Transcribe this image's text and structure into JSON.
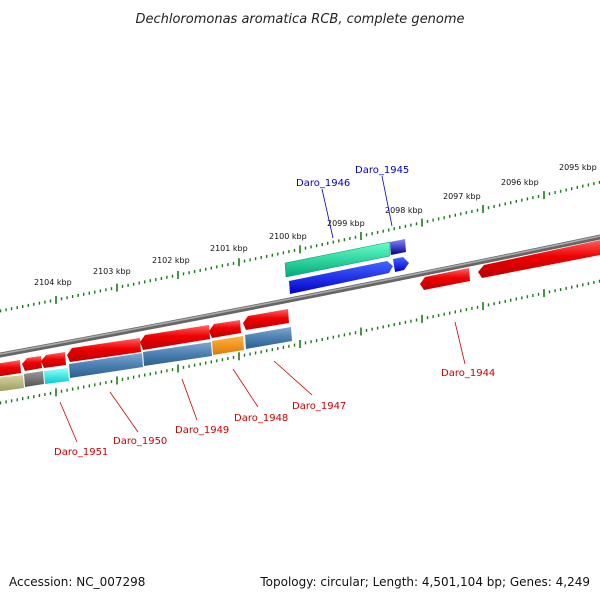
{
  "title": "Dechloromonas aromatica RCB, complete genome",
  "footer": {
    "accession": "Accession: NC_007298",
    "topology": "Topology: circular; Length: 4,501,104 bp; Genes: 4,249"
  },
  "colors": {
    "backbone": "#888888",
    "tick": "#1a7a1a",
    "forward_gene": "#ee0000",
    "reverse_label": "#cc0000",
    "forward_label": "#0000cc"
  },
  "ticks": {
    "outer": [
      {
        "label": "2100 kbp",
        "kbp": 2100
      },
      {
        "label": "2099 kbp",
        "kbp": 2099
      },
      {
        "label": "2098 kbp",
        "kbp": 2098
      },
      {
        "label": "2097 kbp",
        "kbp": 2097
      },
      {
        "label": "2096 kbp",
        "kbp": 2096
      },
      {
        "label": "2095 kbp",
        "kbp": 2095
      },
      {
        "label": "2101 kbp",
        "kbp": 2101
      },
      {
        "label": "2102 kbp",
        "kbp": 2102
      },
      {
        "label": "2103 kbp",
        "kbp": 2103
      },
      {
        "label": "2104 kbp",
        "kbp": 2104
      }
    ]
  },
  "genes": {
    "labels": [
      {
        "name": "Daro_1946",
        "strand": "plus"
      },
      {
        "name": "Daro_1945",
        "strand": "plus"
      },
      {
        "name": "Daro_1944",
        "strand": "minus"
      },
      {
        "name": "Daro_1947",
        "strand": "minus"
      },
      {
        "name": "Daro_1948",
        "strand": "minus"
      },
      {
        "name": "Daro_1949",
        "strand": "minus"
      },
      {
        "name": "Daro_1950",
        "strand": "minus"
      },
      {
        "name": "Daro_1951",
        "strand": "minus"
      }
    ]
  }
}
